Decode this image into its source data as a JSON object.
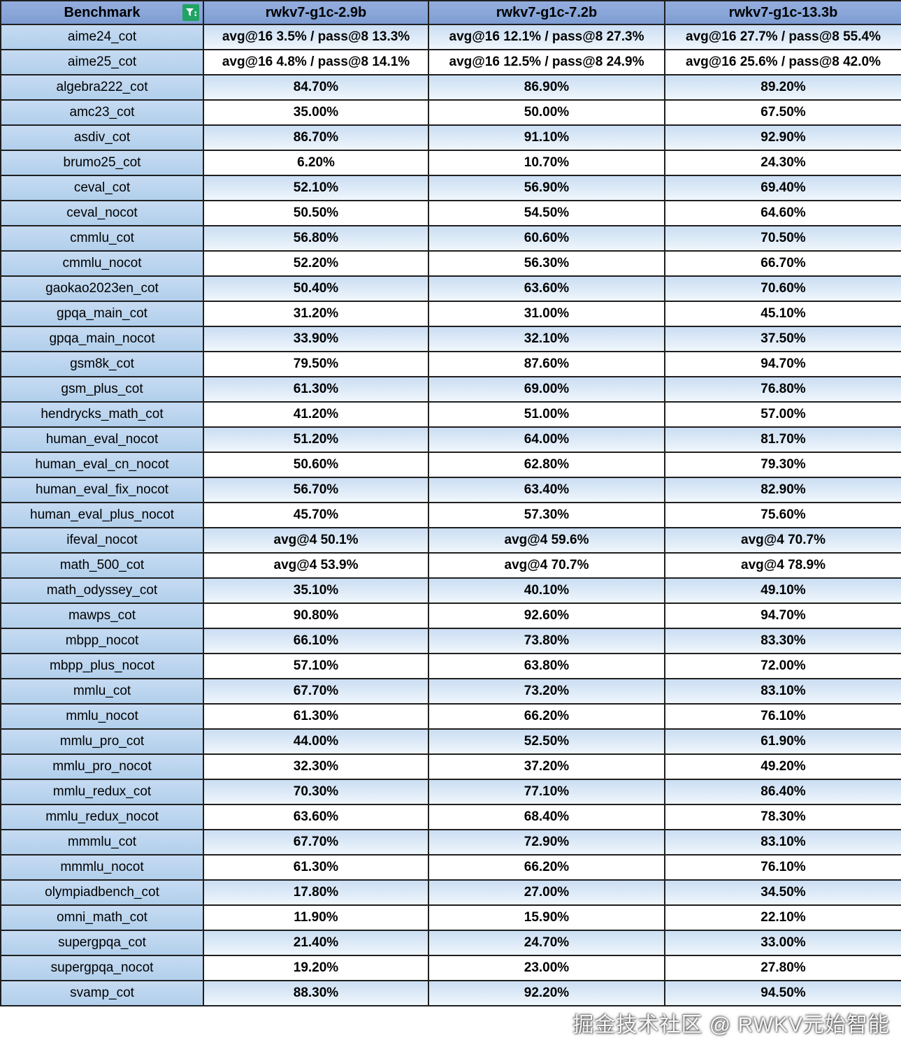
{
  "table": {
    "columns": [
      "Benchmark",
      "rwkv7-g1c-2.9b",
      "rwkv7-g1c-7.2b",
      "rwkv7-g1c-13.3b"
    ],
    "rows": [
      {
        "name": "aime24_cot",
        "values": [
          "avg@16 3.5% / pass@8 13.3%",
          "avg@16 12.1% / pass@8 27.3%",
          "avg@16 27.7% / pass@8 55.4%"
        ]
      },
      {
        "name": "aime25_cot",
        "values": [
          "avg@16 4.8% / pass@8 14.1%",
          "avg@16 12.5% / pass@8 24.9%",
          "avg@16 25.6% / pass@8 42.0%"
        ]
      },
      {
        "name": "algebra222_cot",
        "values": [
          "84.70%",
          "86.90%",
          "89.20%"
        ]
      },
      {
        "name": "amc23_cot",
        "values": [
          "35.00%",
          "50.00%",
          "67.50%"
        ]
      },
      {
        "name": "asdiv_cot",
        "values": [
          "86.70%",
          "91.10%",
          "92.90%"
        ]
      },
      {
        "name": "brumo25_cot",
        "values": [
          "6.20%",
          "10.70%",
          "24.30%"
        ]
      },
      {
        "name": "ceval_cot",
        "values": [
          "52.10%",
          "56.90%",
          "69.40%"
        ]
      },
      {
        "name": "ceval_nocot",
        "values": [
          "50.50%",
          "54.50%",
          "64.60%"
        ]
      },
      {
        "name": "cmmlu_cot",
        "values": [
          "56.80%",
          "60.60%",
          "70.50%"
        ]
      },
      {
        "name": "cmmlu_nocot",
        "values": [
          "52.20%",
          "56.30%",
          "66.70%"
        ]
      },
      {
        "name": "gaokao2023en_cot",
        "values": [
          "50.40%",
          "63.60%",
          "70.60%"
        ]
      },
      {
        "name": "gpqa_main_cot",
        "values": [
          "31.20%",
          "31.00%",
          "45.10%"
        ]
      },
      {
        "name": "gpqa_main_nocot",
        "values": [
          "33.90%",
          "32.10%",
          "37.50%"
        ]
      },
      {
        "name": "gsm8k_cot",
        "values": [
          "79.50%",
          "87.60%",
          "94.70%"
        ]
      },
      {
        "name": "gsm_plus_cot",
        "values": [
          "61.30%",
          "69.00%",
          "76.80%"
        ]
      },
      {
        "name": "hendrycks_math_cot",
        "values": [
          "41.20%",
          "51.00%",
          "57.00%"
        ]
      },
      {
        "name": "human_eval_nocot",
        "values": [
          "51.20%",
          "64.00%",
          "81.70%"
        ]
      },
      {
        "name": "human_eval_cn_nocot",
        "values": [
          "50.60%",
          "62.80%",
          "79.30%"
        ]
      },
      {
        "name": "human_eval_fix_nocot",
        "values": [
          "56.70%",
          "63.40%",
          "82.90%"
        ]
      },
      {
        "name": "human_eval_plus_nocot",
        "values": [
          "45.70%",
          "57.30%",
          "75.60%"
        ]
      },
      {
        "name": "ifeval_nocot",
        "values": [
          "avg@4 50.1%",
          "avg@4 59.6%",
          "avg@4 70.7%"
        ]
      },
      {
        "name": "math_500_cot",
        "values": [
          "avg@4 53.9%",
          "avg@4 70.7%",
          "avg@4 78.9%"
        ]
      },
      {
        "name": "math_odyssey_cot",
        "values": [
          "35.10%",
          "40.10%",
          "49.10%"
        ]
      },
      {
        "name": "mawps_cot",
        "values": [
          "90.80%",
          "92.60%",
          "94.70%"
        ]
      },
      {
        "name": "mbpp_nocot",
        "values": [
          "66.10%",
          "73.80%",
          "83.30%"
        ]
      },
      {
        "name": "mbpp_plus_nocot",
        "values": [
          "57.10%",
          "63.80%",
          "72.00%"
        ]
      },
      {
        "name": "mmlu_cot",
        "values": [
          "67.70%",
          "73.20%",
          "83.10%"
        ]
      },
      {
        "name": "mmlu_nocot",
        "values": [
          "61.30%",
          "66.20%",
          "76.10%"
        ]
      },
      {
        "name": "mmlu_pro_cot",
        "values": [
          "44.00%",
          "52.50%",
          "61.90%"
        ]
      },
      {
        "name": "mmlu_pro_nocot",
        "values": [
          "32.30%",
          "37.20%",
          "49.20%"
        ]
      },
      {
        "name": "mmlu_redux_cot",
        "values": [
          "70.30%",
          "77.10%",
          "86.40%"
        ]
      },
      {
        "name": "mmlu_redux_nocot",
        "values": [
          "63.60%",
          "68.40%",
          "78.30%"
        ]
      },
      {
        "name": "mmmlu_cot",
        "values": [
          "67.70%",
          "72.90%",
          "83.10%"
        ]
      },
      {
        "name": "mmmlu_nocot",
        "values": [
          "61.30%",
          "66.20%",
          "76.10%"
        ]
      },
      {
        "name": "olympiadbench_cot",
        "values": [
          "17.80%",
          "27.00%",
          "34.50%"
        ]
      },
      {
        "name": "omni_math_cot",
        "values": [
          "11.90%",
          "15.90%",
          "22.10%"
        ]
      },
      {
        "name": "supergpqa_cot",
        "values": [
          "21.40%",
          "24.70%",
          "33.00%"
        ]
      },
      {
        "name": "supergpqa_nocot",
        "values": [
          "19.20%",
          "23.00%",
          "27.80%"
        ]
      },
      {
        "name": "svamp_cot",
        "values": [
          "88.30%",
          "92.20%",
          "94.50%"
        ]
      }
    ]
  },
  "header": {
    "filter_icon": "filter-icon"
  },
  "watermark": "掘金技术社区 @ RWKV元始智能",
  "colors": {
    "header_blue": "#84a2d6",
    "benchmark_column_blue": "#bdd7ee",
    "stripe_row_blue": "#d8e6f5",
    "plain_row_white": "#ffffff",
    "border_dark": "#1f1f1f",
    "filter_green": "#21a366",
    "text_black": "#000000"
  }
}
